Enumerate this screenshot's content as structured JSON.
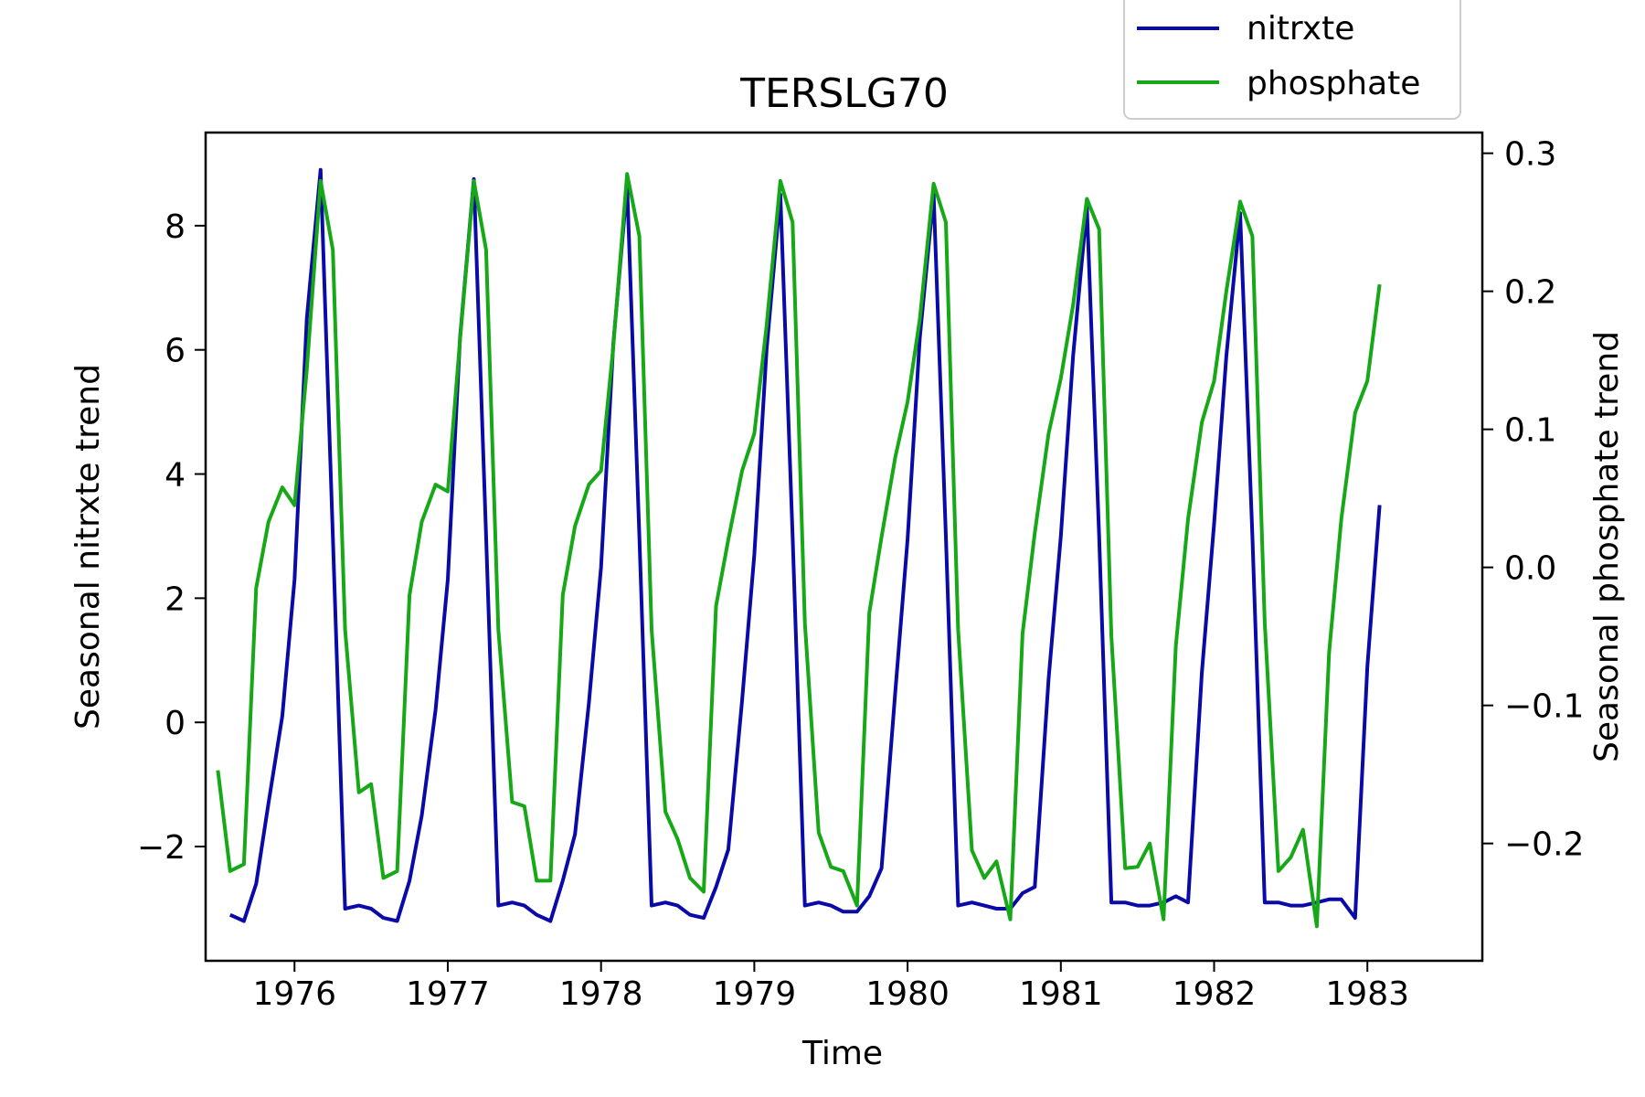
{
  "chart_data": {
    "type": "line",
    "title": "TERSLG70",
    "xlabel": "Time",
    "ylabel_left": "Seasonal nitrxte trend",
    "ylabel_right": "Seasonal phosphate trend",
    "x_ticks": [
      1976,
      1977,
      1978,
      1979,
      1980,
      1981,
      1982,
      1983
    ],
    "x_tick_labels": [
      "1976",
      "1977",
      "1978",
      "1979",
      "1980",
      "1981",
      "1982",
      "1983"
    ],
    "xlim": [
      1975.42,
      1983.75
    ],
    "y_left_ticks": [
      -2,
      0,
      2,
      4,
      6,
      8
    ],
    "y_left_tick_labels": [
      "−2",
      "0",
      "2",
      "4",
      "6",
      "8"
    ],
    "ylim_left": [
      -3.84,
      9.5
    ],
    "y_right_ticks": [
      -0.2,
      -0.1,
      0.0,
      0.1,
      0.2,
      0.3
    ],
    "y_right_tick_labels": [
      "−0.2",
      "−0.1",
      "0.0",
      "0.1",
      "0.2",
      "0.3"
    ],
    "ylim_right": [
      -0.285,
      0.315
    ],
    "legend_position": "top-right, above plot",
    "grid": false,
    "series": [
      {
        "name": "nitrxte",
        "axis": "left",
        "color": "#0a0aa8",
        "x": [
          1975.58,
          1975.67,
          1975.75,
          1975.83,
          1975.92,
          1976.0,
          1976.08,
          1976.17,
          1976.25,
          1976.33,
          1976.42,
          1976.5,
          1976.58,
          1976.67,
          1976.75,
          1976.83,
          1976.92,
          1977.0,
          1977.08,
          1977.17,
          1977.25,
          1977.33,
          1977.42,
          1977.5,
          1977.58,
          1977.67,
          1977.75,
          1977.83,
          1977.92,
          1978.0,
          1978.08,
          1978.17,
          1978.25,
          1978.33,
          1978.42,
          1978.5,
          1978.58,
          1978.67,
          1978.75,
          1978.83,
          1978.92,
          1979.0,
          1979.08,
          1979.17,
          1979.25,
          1979.33,
          1979.42,
          1979.5,
          1979.58,
          1979.67,
          1979.75,
          1979.83,
          1979.92,
          1980.0,
          1980.08,
          1980.17,
          1980.25,
          1980.33,
          1980.42,
          1980.5,
          1980.58,
          1980.67,
          1980.75,
          1980.83,
          1980.92,
          1981.0,
          1981.08,
          1981.17,
          1981.25,
          1981.33,
          1981.42,
          1981.5,
          1981.58,
          1981.67,
          1981.75,
          1981.83,
          1981.92,
          1982.0,
          1982.08,
          1982.17,
          1982.25,
          1982.33,
          1982.42,
          1982.5,
          1982.58,
          1982.67,
          1982.75,
          1982.83,
          1982.92,
          1983.0,
          1983.08
        ],
        "values": [
          -3.1,
          -3.2,
          -2.6,
          -1.3,
          0.1,
          2.3,
          6.5,
          8.9,
          3.0,
          -3.0,
          -2.95,
          -3.0,
          -3.15,
          -3.2,
          -2.55,
          -1.5,
          0.2,
          2.3,
          6.2,
          8.75,
          3.0,
          -2.95,
          -2.9,
          -2.95,
          -3.1,
          -3.2,
          -2.55,
          -1.8,
          0.3,
          2.5,
          6.1,
          8.65,
          3.0,
          -2.95,
          -2.9,
          -2.95,
          -3.1,
          -3.15,
          -2.65,
          -2.05,
          0.35,
          2.7,
          6.0,
          8.5,
          3.0,
          -2.95,
          -2.9,
          -2.95,
          -3.05,
          -3.05,
          -2.8,
          -2.35,
          0.5,
          2.95,
          6.2,
          8.5,
          3.0,
          -2.95,
          -2.9,
          -2.95,
          -3.0,
          -3.0,
          -2.75,
          -2.65,
          0.7,
          3.0,
          5.9,
          8.3,
          3.0,
          -2.9,
          -2.9,
          -2.95,
          -2.95,
          -2.9,
          -2.8,
          -2.9,
          0.8,
          3.2,
          5.9,
          8.2,
          3.0,
          -2.9,
          -2.9,
          -2.95,
          -2.95,
          -2.9,
          -2.85,
          -2.85,
          -3.15,
          0.9,
          3.5
        ]
      },
      {
        "name": "phosphate",
        "axis": "right",
        "color": "#16a816",
        "x": [
          1975.5,
          1975.58,
          1975.67,
          1975.75,
          1975.83,
          1975.92,
          1976.0,
          1976.08,
          1976.17,
          1976.25,
          1976.33,
          1976.42,
          1976.5,
          1976.58,
          1976.67,
          1976.75,
          1976.83,
          1976.92,
          1977.0,
          1977.08,
          1977.17,
          1977.25,
          1977.33,
          1977.42,
          1977.5,
          1977.58,
          1977.67,
          1977.75,
          1977.83,
          1977.92,
          1978.0,
          1978.08,
          1978.17,
          1978.25,
          1978.33,
          1978.42,
          1978.5,
          1978.58,
          1978.67,
          1978.75,
          1978.83,
          1978.92,
          1979.0,
          1979.08,
          1979.17,
          1979.25,
          1979.33,
          1979.42,
          1979.5,
          1979.58,
          1979.67,
          1979.75,
          1979.83,
          1979.92,
          1980.0,
          1980.08,
          1980.17,
          1980.25,
          1980.33,
          1980.42,
          1980.5,
          1980.58,
          1980.67,
          1980.75,
          1980.83,
          1980.92,
          1981.0,
          1981.08,
          1981.17,
          1981.25,
          1981.33,
          1981.42,
          1981.5,
          1981.58,
          1981.67,
          1981.75,
          1981.83,
          1981.92,
          1982.0,
          1982.08,
          1982.17,
          1982.25,
          1982.33,
          1982.42,
          1982.5,
          1982.58,
          1982.67,
          1982.75,
          1982.83,
          1982.92,
          1983.0,
          1983.08
        ],
        "values": [
          -0.147,
          -0.22,
          -0.215,
          -0.015,
          0.033,
          0.058,
          0.045,
          0.143,
          0.28,
          0.23,
          -0.045,
          -0.163,
          -0.157,
          -0.225,
          -0.22,
          -0.02,
          0.033,
          0.06,
          0.055,
          0.165,
          0.28,
          0.23,
          -0.045,
          -0.17,
          -0.173,
          -0.227,
          -0.227,
          -0.02,
          0.03,
          0.06,
          0.07,
          0.16,
          0.285,
          0.24,
          -0.045,
          -0.177,
          -0.197,
          -0.225,
          -0.235,
          -0.028,
          0.02,
          0.07,
          0.097,
          0.175,
          0.28,
          0.25,
          -0.04,
          -0.192,
          -0.217,
          -0.22,
          -0.245,
          -0.033,
          0.022,
          0.08,
          0.12,
          0.18,
          0.278,
          0.25,
          -0.045,
          -0.205,
          -0.225,
          -0.213,
          -0.255,
          -0.048,
          0.025,
          0.097,
          0.137,
          0.19,
          0.267,
          0.245,
          -0.05,
          -0.218,
          -0.217,
          -0.2,
          -0.255,
          -0.057,
          0.035,
          0.105,
          0.135,
          0.2,
          0.265,
          0.24,
          -0.04,
          -0.22,
          -0.21,
          -0.19,
          -0.26,
          -0.062,
          0.035,
          0.112,
          0.135,
          0.205
        ]
      }
    ]
  }
}
